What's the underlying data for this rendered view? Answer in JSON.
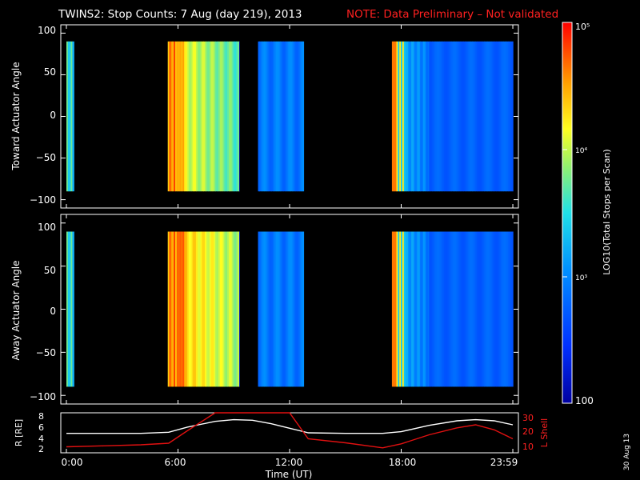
{
  "title": {
    "main": "TWINS2: Stop Counts:  7 Aug (day 219), 2013",
    "note": "NOTE: Data Preliminary – Not validated",
    "note_color": "#ff2020"
  },
  "date_stamp": "30 Aug 13",
  "chart_data": [
    {
      "type": "heatmap",
      "ylabel": "Toward Actuator Angle",
      "ylim": [
        -110,
        110
      ],
      "yticks": [
        "100",
        "50",
        "0",
        "−50",
        "−100"
      ],
      "x_unit": "hours UT",
      "data_intervals_hours": [
        [
          0.0,
          0.4
        ],
        [
          5.45,
          9.3
        ],
        [
          10.3,
          12.75
        ],
        [
          17.5,
          24.0
        ]
      ],
      "angle_range": [
        -90,
        90
      ],
      "colorscale": "log10 counts, 100 to 100000 (blue to red)"
    },
    {
      "type": "heatmap",
      "ylabel": "Away Actuator Angle",
      "ylim": [
        -110,
        110
      ],
      "yticks": [
        "100",
        "50",
        "0",
        "−50",
        "−100"
      ],
      "x_unit": "hours UT",
      "data_intervals_hours": [
        [
          0.0,
          0.4
        ],
        [
          5.45,
          9.3
        ],
        [
          10.3,
          12.75
        ],
        [
          17.5,
          24.0
        ]
      ],
      "angle_range": [
        -90,
        90
      ],
      "colorscale": "log10 counts, 100 to 100000 (blue to red)"
    },
    {
      "type": "line",
      "ylabel_left": "R [RE]",
      "ylabel_right": "L Shell",
      "xlabel": "Time (UT)",
      "yticks_left": [
        "8",
        "6",
        "4",
        "2"
      ],
      "yticks_right": [
        "30",
        "20",
        "10"
      ],
      "ylim_left": [
        1.5,
        8.5
      ],
      "ylim_right": [
        10,
        30
      ],
      "x": [
        0,
        2,
        4,
        5.5,
        6.5,
        8,
        9,
        10,
        11,
        12,
        13,
        15,
        17,
        18,
        19.5,
        21,
        22,
        23,
        24
      ],
      "series": [
        {
          "name": "R",
          "color": "#ffffff",
          "values": [
            4.9,
            4.9,
            4.9,
            5.1,
            6.0,
            7.0,
            7.3,
            7.2,
            6.6,
            5.8,
            5.0,
            4.9,
            4.9,
            5.2,
            6.3,
            7.1,
            7.3,
            7.1,
            6.4
          ]
        },
        {
          "name": "L Shell",
          "color": "#e01010",
          "values": [
            13,
            13.5,
            14,
            14.8,
            21,
            31,
            31,
            31,
            31,
            30,
            17,
            15,
            12.5,
            14.5,
            19,
            22.5,
            24,
            21.5,
            17
          ]
        }
      ]
    }
  ],
  "x_axis": {
    "ticks": [
      "0:00",
      "6:00",
      "12:00",
      "18:00",
      "23:59"
    ],
    "tick_hours": [
      0,
      6,
      12,
      18,
      24
    ],
    "xlim": [
      -0.3,
      24.3
    ],
    "label": "Time (UT)"
  },
  "colorbar": {
    "label": "LOG10(Total Stops per Scan)",
    "ticks": [
      "10⁵",
      "10⁴",
      "10³",
      "100"
    ],
    "tick_values": [
      100000,
      10000,
      1000,
      100
    ],
    "range": [
      100,
      100000
    ]
  }
}
